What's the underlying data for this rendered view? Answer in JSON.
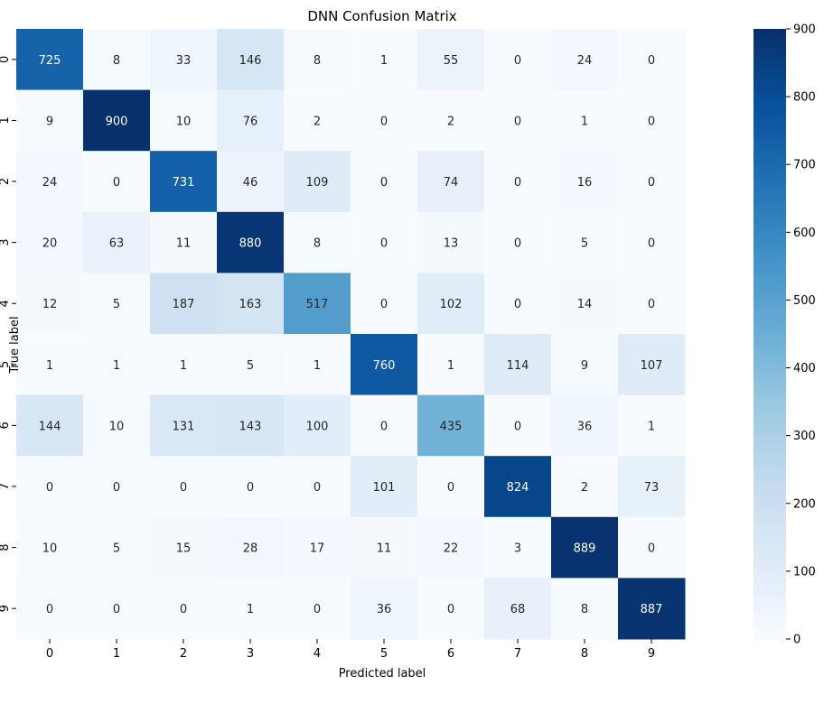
{
  "chart_data": {
    "type": "heatmap",
    "title": "DNN Confusion Matrix",
    "xlabel": "Predicted label",
    "ylabel": "True label",
    "x_categories": [
      "0",
      "1",
      "2",
      "3",
      "4",
      "5",
      "6",
      "7",
      "8",
      "9"
    ],
    "y_categories": [
      "0",
      "1",
      "2",
      "3",
      "4",
      "5",
      "6",
      "7",
      "8",
      "9"
    ],
    "values": [
      [
        725,
        8,
        33,
        146,
        8,
        1,
        55,
        0,
        24,
        0
      ],
      [
        9,
        900,
        10,
        76,
        2,
        0,
        2,
        0,
        1,
        0
      ],
      [
        24,
        0,
        731,
        46,
        109,
        0,
        74,
        0,
        16,
        0
      ],
      [
        20,
        63,
        11,
        880,
        8,
        0,
        13,
        0,
        5,
        0
      ],
      [
        12,
        5,
        187,
        163,
        517,
        0,
        102,
        0,
        14,
        0
      ],
      [
        1,
        1,
        1,
        5,
        1,
        760,
        1,
        114,
        9,
        107
      ],
      [
        144,
        10,
        131,
        143,
        100,
        0,
        435,
        0,
        36,
        1
      ],
      [
        0,
        0,
        0,
        0,
        0,
        101,
        0,
        824,
        2,
        73
      ],
      [
        10,
        5,
        15,
        28,
        17,
        11,
        22,
        3,
        889,
        0
      ],
      [
        0,
        0,
        0,
        1,
        0,
        36,
        0,
        68,
        8,
        887
      ]
    ],
    "colorscale": "Blues",
    "color_range": [
      0,
      900
    ],
    "colorbar_ticks": [
      0,
      100,
      200,
      300,
      400,
      500,
      600,
      700,
      800,
      900
    ],
    "grid": false
  }
}
